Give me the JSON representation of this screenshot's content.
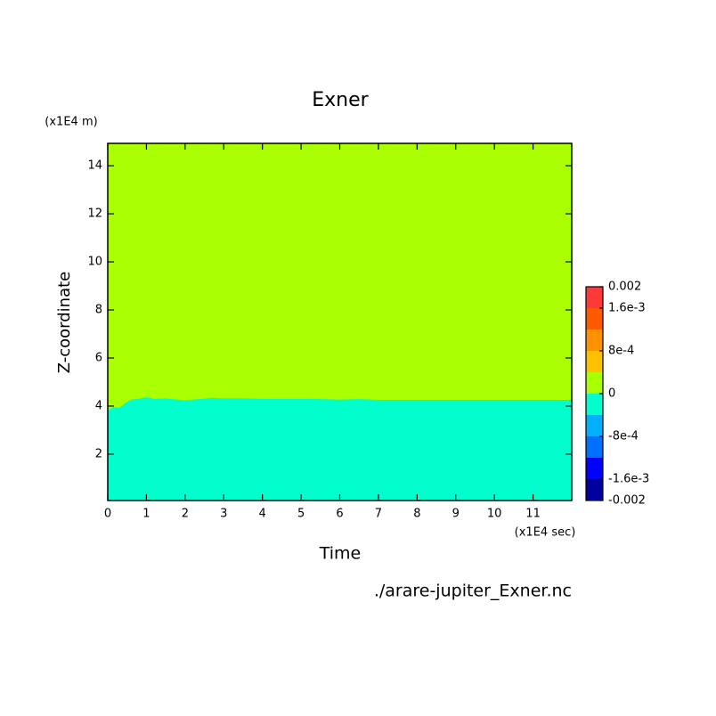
{
  "chart_data": {
    "type": "contour",
    "title": "Exner",
    "xlabel": "Time",
    "xunit": "(x1E4 sec)",
    "ylabel": "Z-coordinate",
    "yunit": "(x1E4 m)",
    "footnote": "./arare-jupiter_Exner.nc",
    "xlim": [
      0,
      12
    ],
    "ylim": [
      0.07,
      14.93
    ],
    "xticks": [
      0,
      1,
      2,
      3,
      4,
      5,
      6,
      7,
      8,
      9,
      10,
      11
    ],
    "yticks": [
      2,
      4,
      6,
      8,
      10,
      12,
      14
    ],
    "boundary": {
      "x": [
        0,
        0.15,
        0.3,
        0.45,
        0.6,
        0.8,
        1,
        1.2,
        1.5,
        1.8,
        2,
        2.3,
        2.7,
        3,
        3.5,
        4,
        4.5,
        5,
        5.5,
        6,
        6.5,
        7,
        8,
        9,
        10,
        11,
        12
      ],
      "values": [
        3.8,
        3.95,
        3.9,
        4.1,
        4.25,
        4.28,
        4.35,
        4.28,
        4.3,
        4.25,
        4.22,
        4.26,
        4.32,
        4.3,
        4.3,
        4.28,
        4.28,
        4.28,
        4.27,
        4.25,
        4.27,
        4.24,
        4.24,
        4.24,
        4.24,
        4.24,
        4.24
      ]
    },
    "lower_color": "#00ffcc",
    "upper_color": "#aaff00",
    "colorbar": {
      "levels": [
        -0.002,
        -0.0016,
        -0.0012,
        -0.0008,
        -0.0004,
        0,
        0.0004,
        0.0008,
        0.0012,
        0.0016,
        0.002
      ],
      "colors": [
        "#0000a0",
        "#0000ff",
        "#0070ff",
        "#00b0ff",
        "#00ffcc",
        "#aaff00",
        "#ffc000",
        "#ff9000",
        "#ff5a00",
        "#ff3838"
      ],
      "ticks": [
        -0.002,
        {
          "value": -0.0016,
          "label": "-1.6e-3"
        },
        {
          "value": -0.0008,
          "label": "-8e-4"
        },
        0,
        {
          "value": 0.0008,
          "label": "8e-4"
        },
        {
          "value": 0.0016,
          "label": "1.6e-3"
        },
        0.002
      ]
    }
  }
}
